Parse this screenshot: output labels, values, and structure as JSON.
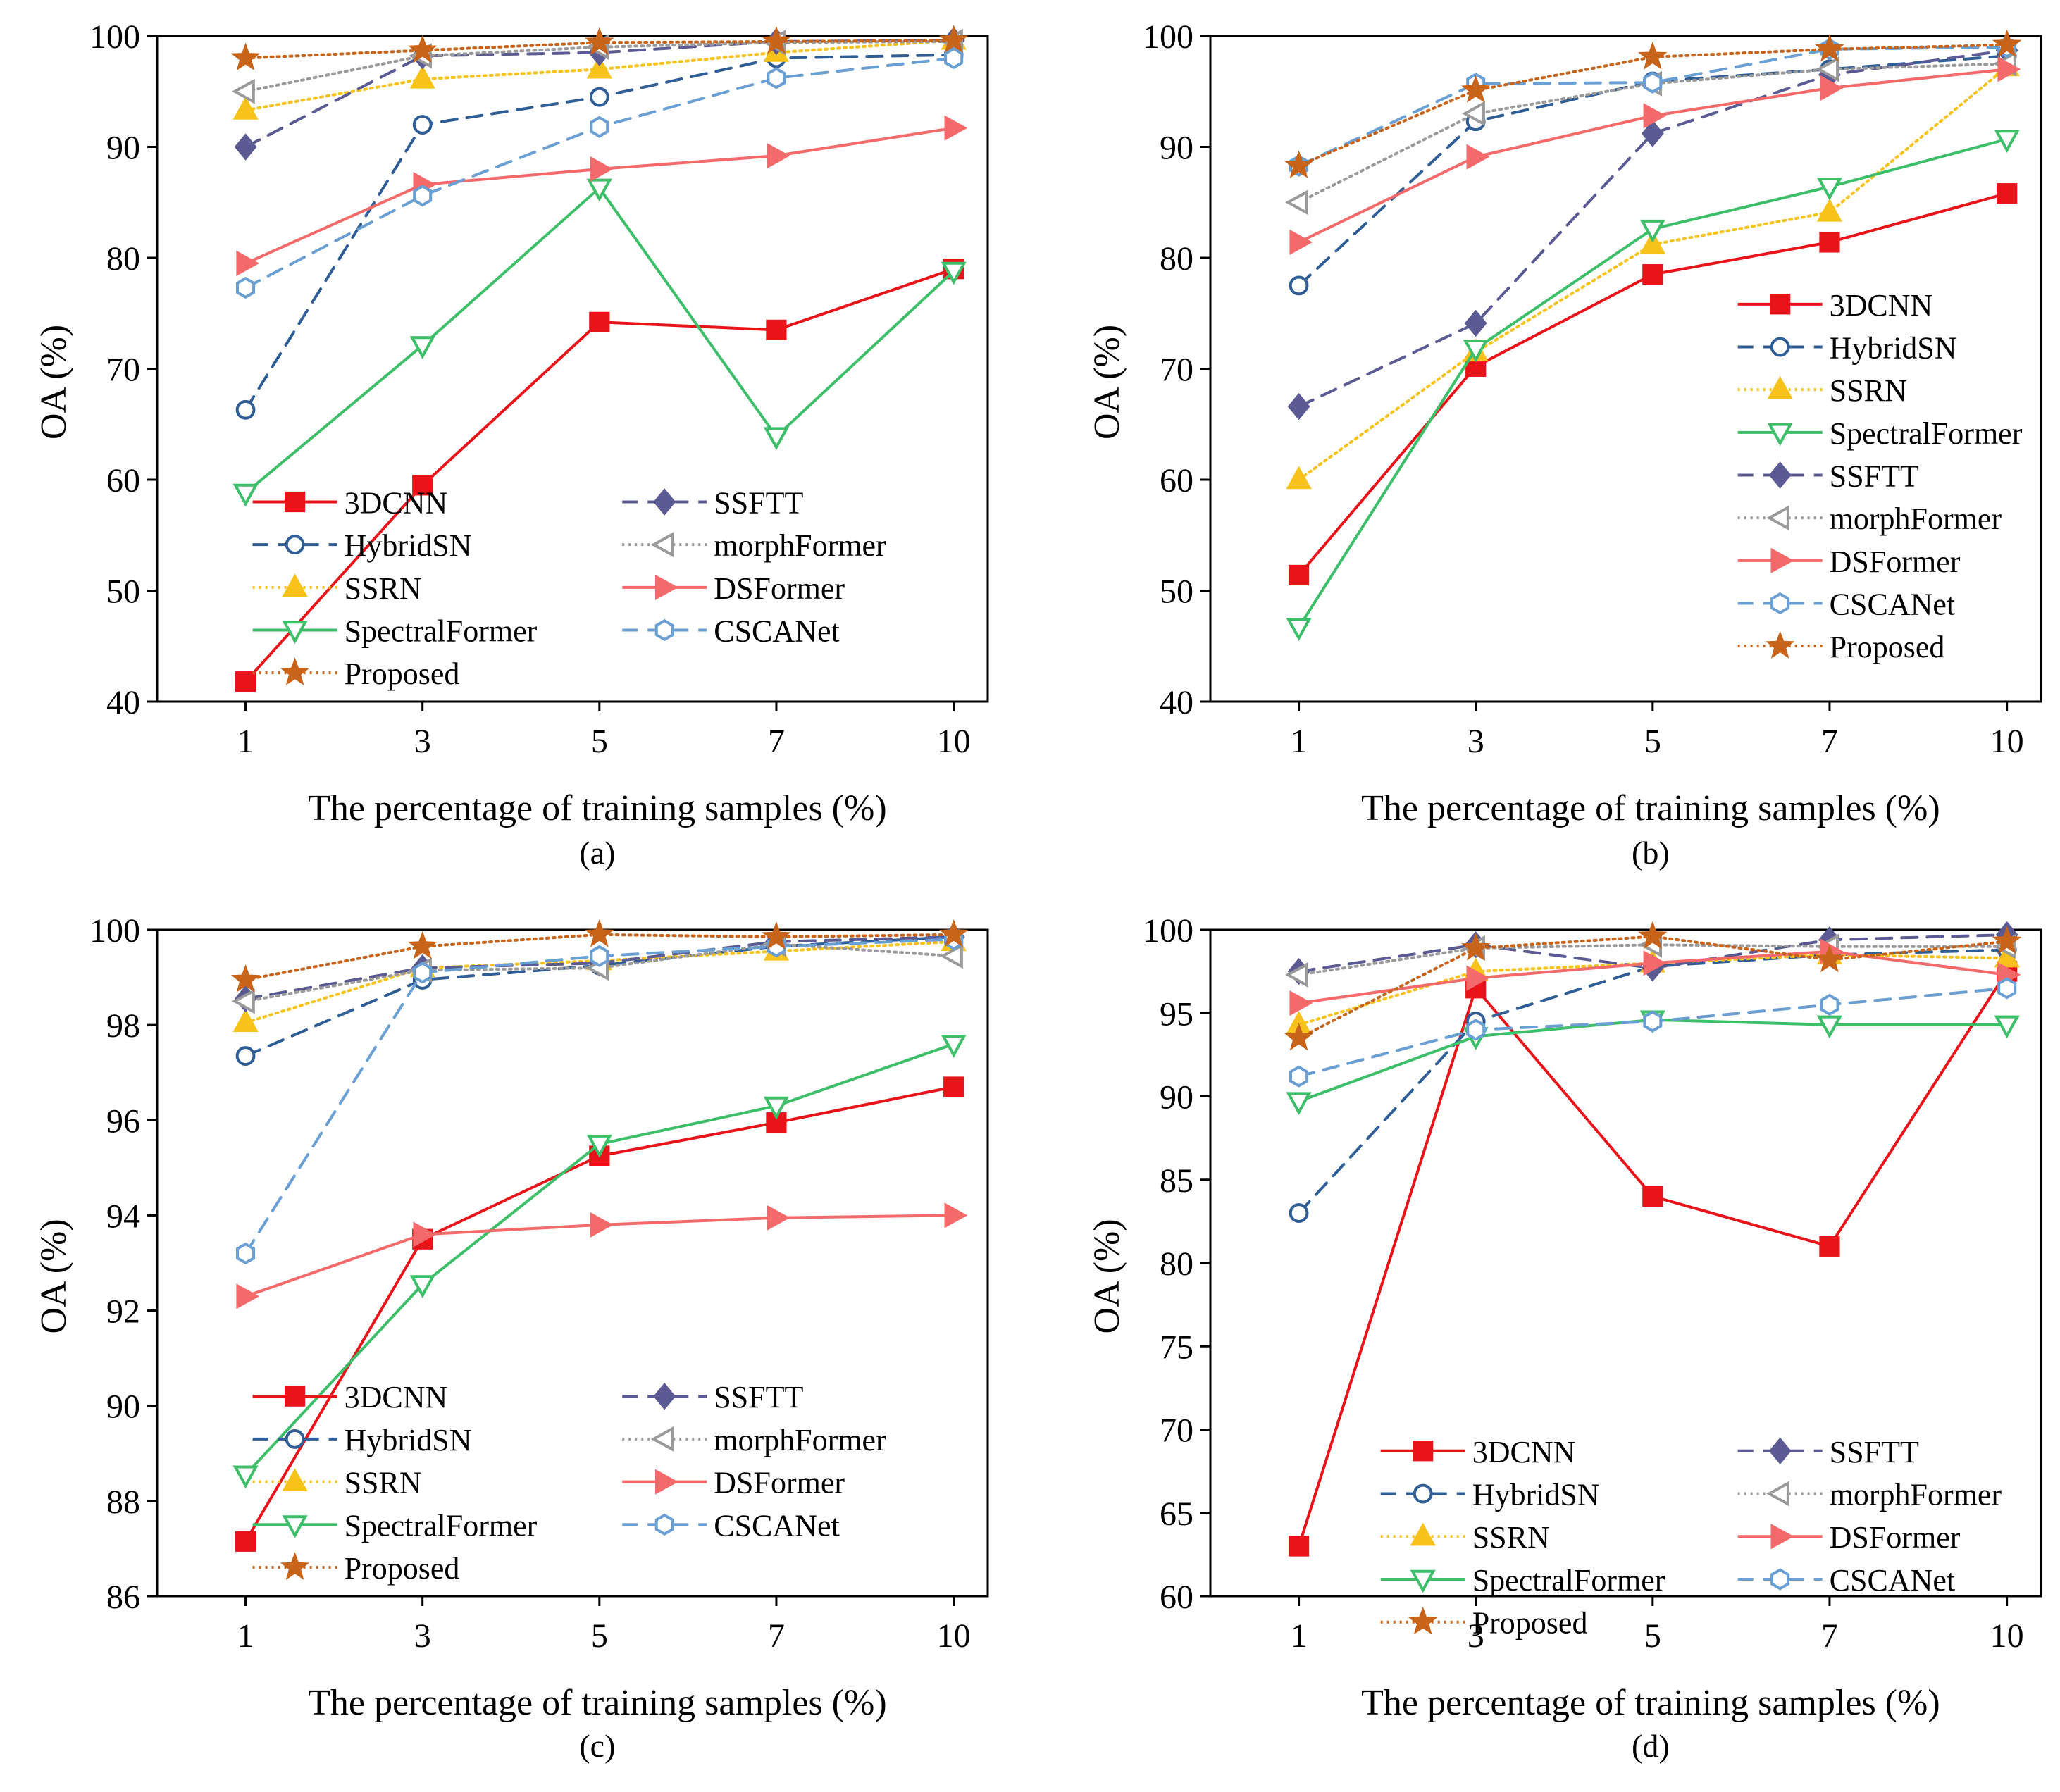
{
  "figure": {
    "panels": [
      "a",
      "b",
      "c",
      "d"
    ]
  },
  "colors": {
    "3DCNN": "#e8141a",
    "HybridSN": "#2f5d95",
    "SSRN": "#f7c21a",
    "SpectralFormer": "#3dbf6a",
    "SSFTT": "#5b5a93",
    "morphFormer": "#9a9a9a",
    "DSFormer": "#f46a6a",
    "CSCANet": "#6a9fd4",
    "Proposed": "#c8641a"
  },
  "chart_data": [
    {
      "id": "a",
      "type": "line",
      "caption": "(a)",
      "xlabel": "The percentage of training samples (%)",
      "ylabel": "OA (%)",
      "x": [
        "1",
        "3",
        "5",
        "7",
        "10"
      ],
      "ylim": [
        40,
        100
      ],
      "yticks": [
        40,
        50,
        60,
        70,
        80,
        90,
        100
      ],
      "legend_layout": "two-column",
      "legend_position": "lower-right",
      "series": [
        {
          "name": "3DCNN",
          "values": [
            41.8,
            59.5,
            74.2,
            73.5,
            79.0
          ]
        },
        {
          "name": "HybridSN",
          "values": [
            66.3,
            92.0,
            94.5,
            98.0,
            98.3
          ]
        },
        {
          "name": "SSRN",
          "values": [
            93.3,
            96.1,
            97.0,
            98.5,
            99.6
          ]
        },
        {
          "name": "SpectralFormer",
          "values": [
            58.8,
            72.1,
            86.3,
            63.9,
            78.8
          ]
        },
        {
          "name": "SSFTT",
          "values": [
            90.0,
            98.2,
            98.5,
            99.5,
            99.6
          ]
        },
        {
          "name": "morphFormer",
          "values": [
            95.0,
            98.2,
            99.0,
            99.4,
            99.5
          ]
        },
        {
          "name": "DSFormer",
          "values": [
            79.5,
            86.6,
            88.0,
            89.2,
            91.7
          ]
        },
        {
          "name": "CSCANet",
          "values": [
            77.3,
            85.6,
            91.8,
            96.2,
            98.0
          ]
        },
        {
          "name": "Proposed",
          "values": [
            98.0,
            98.7,
            99.4,
            99.5,
            99.6
          ]
        }
      ]
    },
    {
      "id": "b",
      "type": "line",
      "caption": "(b)",
      "xlabel": "The percentage of training samples (%)",
      "ylabel": "OA (%)",
      "x": [
        "1",
        "3",
        "5",
        "7",
        "10"
      ],
      "ylim": [
        40,
        100
      ],
      "yticks": [
        40,
        50,
        60,
        70,
        80,
        90,
        100
      ],
      "legend_layout": "one-column",
      "legend_position": "lower-right",
      "series": [
        {
          "name": "3DCNN",
          "values": [
            51.4,
            70.2,
            78.5,
            81.4,
            85.8
          ]
        },
        {
          "name": "HybridSN",
          "values": [
            77.5,
            92.3,
            95.9,
            97.0,
            98.2
          ]
        },
        {
          "name": "SSRN",
          "values": [
            60.0,
            71.5,
            81.2,
            84.1,
            97.2
          ]
        },
        {
          "name": "SpectralFormer",
          "values": [
            46.7,
            71.8,
            82.6,
            86.4,
            90.7
          ]
        },
        {
          "name": "SSFTT",
          "values": [
            66.6,
            74.1,
            91.2,
            96.5,
            98.7
          ]
        },
        {
          "name": "morphFormer",
          "values": [
            85.0,
            93.0,
            95.7,
            97.0,
            97.5
          ]
        },
        {
          "name": "DSFormer",
          "values": [
            81.4,
            89.1,
            92.8,
            95.3,
            97.0
          ]
        },
        {
          "name": "CSCANet",
          "values": [
            88.3,
            95.7,
            95.8,
            98.8,
            99.0
          ]
        },
        {
          "name": "Proposed",
          "values": [
            88.3,
            95.1,
            98.1,
            98.8,
            99.2
          ]
        }
      ]
    },
    {
      "id": "c",
      "type": "line",
      "caption": "(c)",
      "xlabel": "The percentage of training samples (%)",
      "ylabel": "OA (%)",
      "x": [
        "1",
        "3",
        "5",
        "7",
        "10"
      ],
      "ylim": [
        86,
        100
      ],
      "yticks": [
        86,
        88,
        90,
        92,
        94,
        96,
        98,
        100
      ],
      "legend_layout": "two-column",
      "legend_position": "lower-right",
      "series": [
        {
          "name": "3DCNN",
          "values": [
            87.15,
            93.5,
            95.25,
            95.95,
            96.7
          ]
        },
        {
          "name": "HybridSN",
          "values": [
            97.35,
            98.95,
            99.25,
            99.65,
            99.85
          ]
        },
        {
          "name": "SSRN",
          "values": [
            98.05,
            99.2,
            99.35,
            99.55,
            99.75
          ]
        },
        {
          "name": "SpectralFormer",
          "values": [
            88.55,
            92.55,
            95.5,
            96.3,
            97.6
          ]
        },
        {
          "name": "SSFTT",
          "values": [
            98.55,
            99.2,
            99.3,
            99.75,
            99.85
          ]
        },
        {
          "name": "morphFormer",
          "values": [
            98.5,
            99.15,
            99.2,
            99.7,
            99.45
          ]
        },
        {
          "name": "DSFormer",
          "values": [
            92.3,
            93.6,
            93.8,
            93.95,
            94.0
          ]
        },
        {
          "name": "CSCANet",
          "values": [
            93.2,
            99.1,
            99.45,
            99.65,
            99.8
          ]
        },
        {
          "name": "Proposed",
          "values": [
            98.95,
            99.65,
            99.9,
            99.85,
            99.9
          ]
        }
      ]
    },
    {
      "id": "d",
      "type": "line",
      "caption": "(d)",
      "xlabel": "The percentage of training samples (%)",
      "ylabel": "OA (%)",
      "x": [
        "1",
        "3",
        "5",
        "7",
        "10"
      ],
      "ylim": [
        60,
        100
      ],
      "yticks": [
        60,
        65,
        70,
        75,
        80,
        85,
        90,
        95,
        100
      ],
      "legend_layout": "two-column",
      "legend_position": "lower-right",
      "series": [
        {
          "name": "3DCNN",
          "values": [
            63.0,
            96.5,
            84.0,
            81.0,
            97.5
          ]
        },
        {
          "name": "HybridSN",
          "values": [
            83.0,
            94.5,
            97.8,
            98.5,
            98.8
          ]
        },
        {
          "name": "SSRN",
          "values": [
            94.3,
            97.5,
            98.0,
            98.5,
            98.3
          ]
        },
        {
          "name": "SpectralFormer",
          "values": [
            89.7,
            93.6,
            94.6,
            94.3,
            94.3
          ]
        },
        {
          "name": "SSFTT",
          "values": [
            97.5,
            99.1,
            97.7,
            99.4,
            99.7
          ]
        },
        {
          "name": "morphFormer",
          "values": [
            97.3,
            98.9,
            99.1,
            99.0,
            99.0
          ]
        },
        {
          "name": "DSFormer",
          "values": [
            95.6,
            97.1,
            98.0,
            98.7,
            97.3
          ]
        },
        {
          "name": "CSCANet",
          "values": [
            91.2,
            94.0,
            94.5,
            95.5,
            96.5
          ]
        },
        {
          "name": "Proposed",
          "values": [
            93.5,
            98.9,
            99.6,
            98.2,
            99.3
          ]
        }
      ]
    }
  ]
}
